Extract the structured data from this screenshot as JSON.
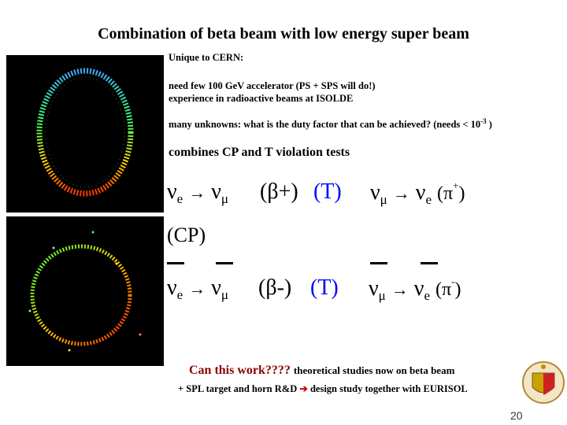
{
  "slide": {
    "title": "Combination of beta beam with low energy super beam",
    "bullets": {
      "unique": "Unique to CERN:",
      "accel": "need few 100 GeV accelerator (PS + SPS will do!)",
      "radio": "experience in radioactive beams at ISOLDE",
      "unknowns_pre": "many unknowns: what is the duty factor that can be achieved? (needs < 10",
      "unknowns_exp": "-3",
      "unknowns_post": " )"
    },
    "combines": "combines CP and T violation tests",
    "reactions": {
      "nu": "ν",
      "arrow": "→",
      "sub_e": "e",
      "sub_mu": "μ",
      "beta_plus": "(β+)",
      "beta_minus": "(β-)",
      "t_label": "(T)",
      "cp_label": "(CP)",
      "pi_open": "(π",
      "pi_plus_sup": "+",
      "pi_minus_sup": "-",
      "close": ")"
    },
    "question": "Can this work????",
    "question_tail": "theoretical studies now on beta beam",
    "spl_pre": "+ SPL target and horn R&D",
    "spl_post": "design study together with EURISOL",
    "page_number": "20"
  }
}
